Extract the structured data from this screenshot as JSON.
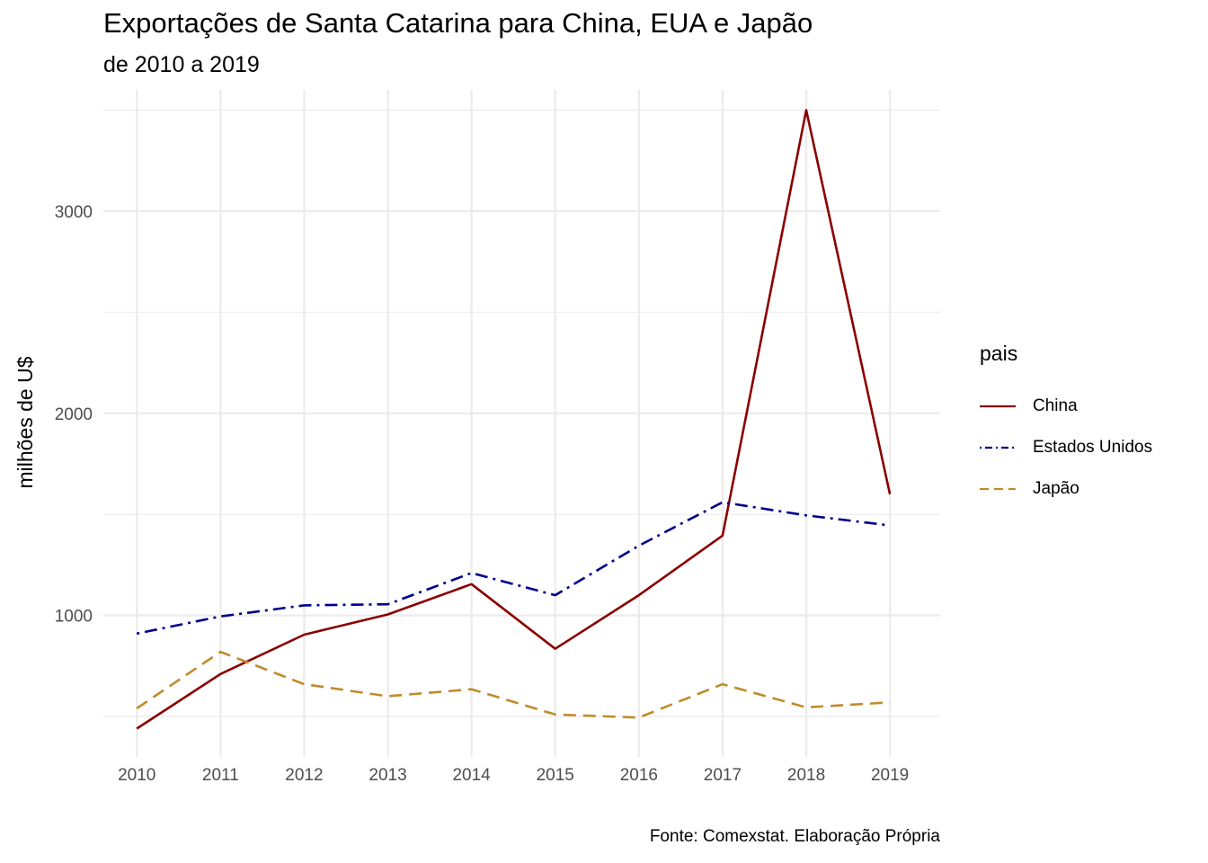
{
  "title": "Exportações de Santa Catarina para China, EUA e Japão",
  "subtitle": "de 2010 a 2019",
  "caption": "Fonte: Comexstat. Elaboração Própria",
  "colors": {
    "China": "#8b0000",
    "Estados Unidos": "#00008b",
    "Japão": "#c08b2a",
    "grid": "#ebebeb"
  },
  "chart_data": {
    "type": "line",
    "title": "Exportações de Santa Catarina para China, EUA e Japão",
    "subtitle": "de 2010 a 2019",
    "xlabel": "",
    "ylabel": "milhões de U$",
    "x": [
      2010,
      2011,
      2012,
      2013,
      2014,
      2015,
      2016,
      2017,
      2018,
      2019
    ],
    "x_tick_labels": [
      "2010",
      "2011",
      "2012",
      "2013",
      "2014",
      "2015",
      "2016",
      "2017",
      "2018",
      "2019"
    ],
    "y_ticks": [
      1000,
      2000,
      3000
    ],
    "y_tick_labels": [
      "1000",
      "2000",
      "3000"
    ],
    "ylim": [
      300,
      3600
    ],
    "grid": true,
    "legend": {
      "title": "pais",
      "position": "right"
    },
    "series": [
      {
        "name": "China",
        "linetype": "solid",
        "values": [
          440,
          710,
          905,
          1005,
          1155,
          835,
          1100,
          1395,
          3500,
          1600
        ]
      },
      {
        "name": "Estados Unidos",
        "linetype": "dotdash",
        "values": [
          910,
          995,
          1050,
          1055,
          1210,
          1100,
          1345,
          1560,
          1495,
          1445
        ]
      },
      {
        "name": "Japão",
        "linetype": "dashed",
        "values": [
          540,
          820,
          660,
          600,
          635,
          510,
          495,
          660,
          545,
          570
        ]
      }
    ]
  }
}
